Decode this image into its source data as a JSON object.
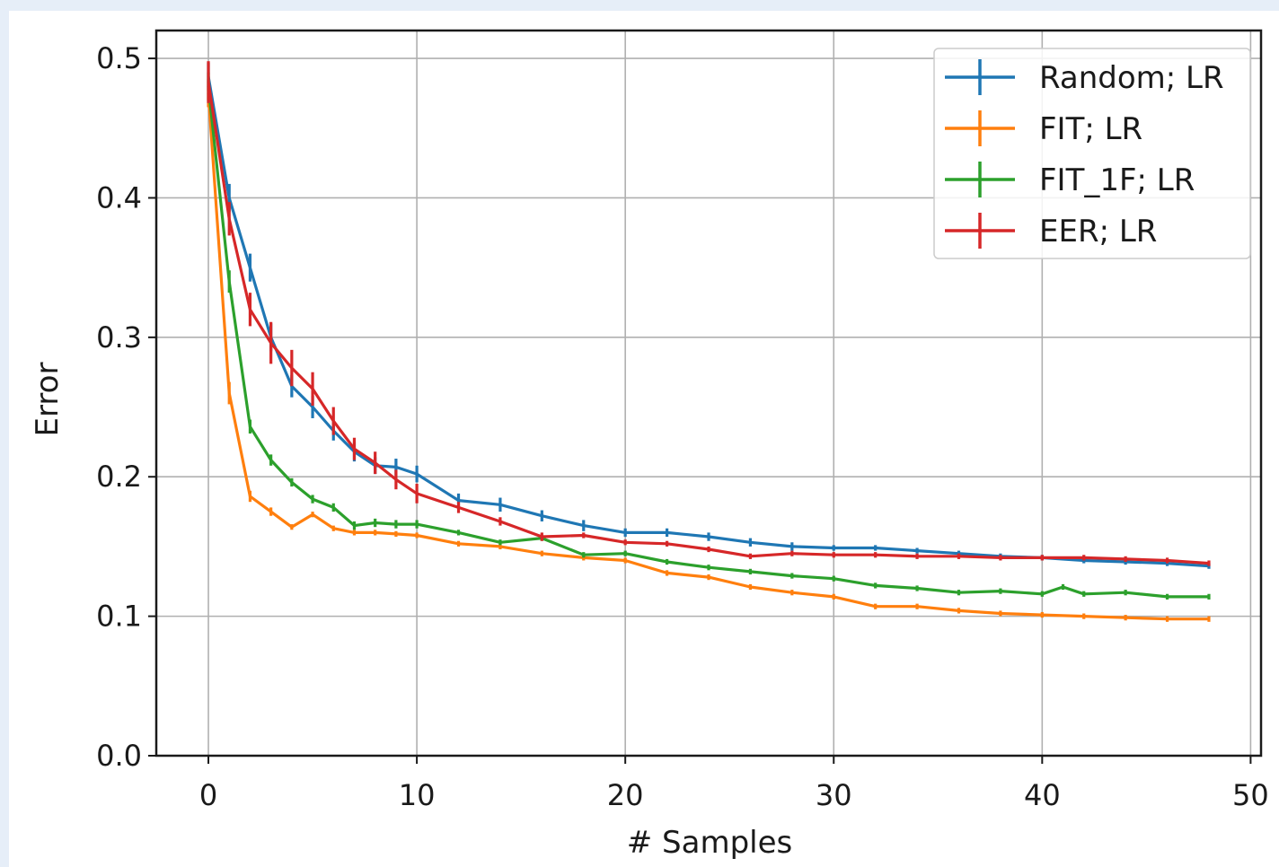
{
  "chart_data": {
    "type": "line",
    "title": "",
    "xlabel": "# Samples",
    "ylabel": "Error",
    "xlim": [
      -2.5,
      50.5
    ],
    "ylim": [
      0.0,
      0.52
    ],
    "xticks": [
      0,
      10,
      20,
      30,
      40,
      50
    ],
    "xtick_labels": [
      "0",
      "10",
      "20",
      "30",
      "40",
      "50"
    ],
    "yticks": [
      0.0,
      0.1,
      0.2,
      0.3,
      0.4,
      0.5
    ],
    "ytick_labels": [
      "0.0",
      "0.1",
      "0.2",
      "0.3",
      "0.4",
      "0.5"
    ],
    "grid": true,
    "legend_position": "top-right",
    "series": [
      {
        "name": "Random; LR",
        "color": "#1f77b4",
        "x": [
          0,
          1,
          2,
          3,
          4,
          5,
          6,
          7,
          8,
          9,
          10,
          12,
          14,
          16,
          18,
          20,
          22,
          24,
          26,
          28,
          30,
          32,
          34,
          36,
          38,
          40,
          42,
          44,
          46,
          48
        ],
        "y": [
          0.487,
          0.4,
          0.35,
          0.3,
          0.265,
          0.25,
          0.233,
          0.218,
          0.208,
          0.207,
          0.202,
          0.183,
          0.18,
          0.172,
          0.165,
          0.16,
          0.16,
          0.157,
          0.153,
          0.15,
          0.149,
          0.149,
          0.147,
          0.145,
          0.143,
          0.142,
          0.14,
          0.139,
          0.138,
          0.136
        ],
        "err": [
          0.01,
          0.01,
          0.01,
          0.01,
          0.008,
          0.008,
          0.007,
          0.007,
          0.006,
          0.006,
          0.006,
          0.005,
          0.005,
          0.004,
          0.004,
          0.003,
          0.003,
          0.003,
          0.003,
          0.003,
          0.002,
          0.002,
          0.002,
          0.002,
          0.002,
          0.002,
          0.002,
          0.002,
          0.002,
          0.002
        ]
      },
      {
        "name": "FIT; LR",
        "color": "#ff7f0e",
        "x": [
          0,
          1,
          2,
          3,
          4,
          5,
          6,
          7,
          8,
          9,
          10,
          12,
          14,
          16,
          18,
          20,
          22,
          24,
          26,
          28,
          30,
          32,
          34,
          36,
          38,
          40,
          42,
          44,
          46,
          48
        ],
        "y": [
          0.475,
          0.26,
          0.186,
          0.175,
          0.164,
          0.173,
          0.163,
          0.16,
          0.16,
          0.159,
          0.158,
          0.152,
          0.15,
          0.145,
          0.142,
          0.14,
          0.131,
          0.128,
          0.121,
          0.117,
          0.114,
          0.107,
          0.107,
          0.104,
          0.102,
          0.101,
          0.1,
          0.099,
          0.098,
          0.098
        ],
        "err": [
          0.01,
          0.008,
          0.004,
          0.003,
          0.002,
          0.002,
          0.002,
          0.002,
          0.002,
          0.002,
          0.002,
          0.002,
          0.002,
          0.002,
          0.002,
          0.002,
          0.002,
          0.002,
          0.002,
          0.002,
          0.002,
          0.002,
          0.002,
          0.002,
          0.002,
          0.002,
          0.002,
          0.002,
          0.002,
          0.002
        ]
      },
      {
        "name": "FIT_1F; LR",
        "color": "#2ca02c",
        "x": [
          0,
          1,
          2,
          3,
          4,
          5,
          6,
          7,
          8,
          9,
          10,
          12,
          14,
          16,
          18,
          20,
          22,
          24,
          26,
          28,
          30,
          32,
          34,
          36,
          38,
          40,
          41,
          42,
          44,
          46,
          48
        ],
        "y": [
          0.48,
          0.34,
          0.236,
          0.212,
          0.196,
          0.184,
          0.178,
          0.165,
          0.167,
          0.166,
          0.166,
          0.16,
          0.153,
          0.156,
          0.144,
          0.145,
          0.139,
          0.135,
          0.132,
          0.129,
          0.127,
          0.122,
          0.12,
          0.117,
          0.118,
          0.116,
          0.121,
          0.116,
          0.117,
          0.114,
          0.114
        ],
        "err": [
          0.01,
          0.008,
          0.005,
          0.004,
          0.003,
          0.003,
          0.003,
          0.003,
          0.003,
          0.003,
          0.003,
          0.002,
          0.002,
          0.002,
          0.002,
          0.002,
          0.002,
          0.002,
          0.002,
          0.002,
          0.002,
          0.002,
          0.002,
          0.002,
          0.002,
          0.002,
          0.002,
          0.002,
          0.002,
          0.002,
          0.002
        ]
      },
      {
        "name": "EER; LR",
        "color": "#d62728",
        "x": [
          0,
          1,
          2,
          3,
          4,
          5,
          6,
          7,
          8,
          9,
          10,
          12,
          14,
          16,
          18,
          20,
          22,
          24,
          26,
          28,
          30,
          32,
          34,
          36,
          38,
          40,
          42,
          44,
          46,
          48
        ],
        "y": [
          0.483,
          0.385,
          0.32,
          0.296,
          0.278,
          0.263,
          0.24,
          0.22,
          0.21,
          0.198,
          0.188,
          0.178,
          0.168,
          0.157,
          0.158,
          0.153,
          0.152,
          0.148,
          0.143,
          0.145,
          0.144,
          0.144,
          0.143,
          0.143,
          0.142,
          0.142,
          0.142,
          0.141,
          0.14,
          0.138
        ],
        "err": [
          0.015,
          0.012,
          0.012,
          0.015,
          0.013,
          0.012,
          0.01,
          0.008,
          0.008,
          0.007,
          0.007,
          0.004,
          0.003,
          0.003,
          0.002,
          0.002,
          0.002,
          0.002,
          0.002,
          0.002,
          0.002,
          0.002,
          0.002,
          0.002,
          0.002,
          0.002,
          0.002,
          0.002,
          0.002,
          0.002
        ]
      }
    ]
  }
}
